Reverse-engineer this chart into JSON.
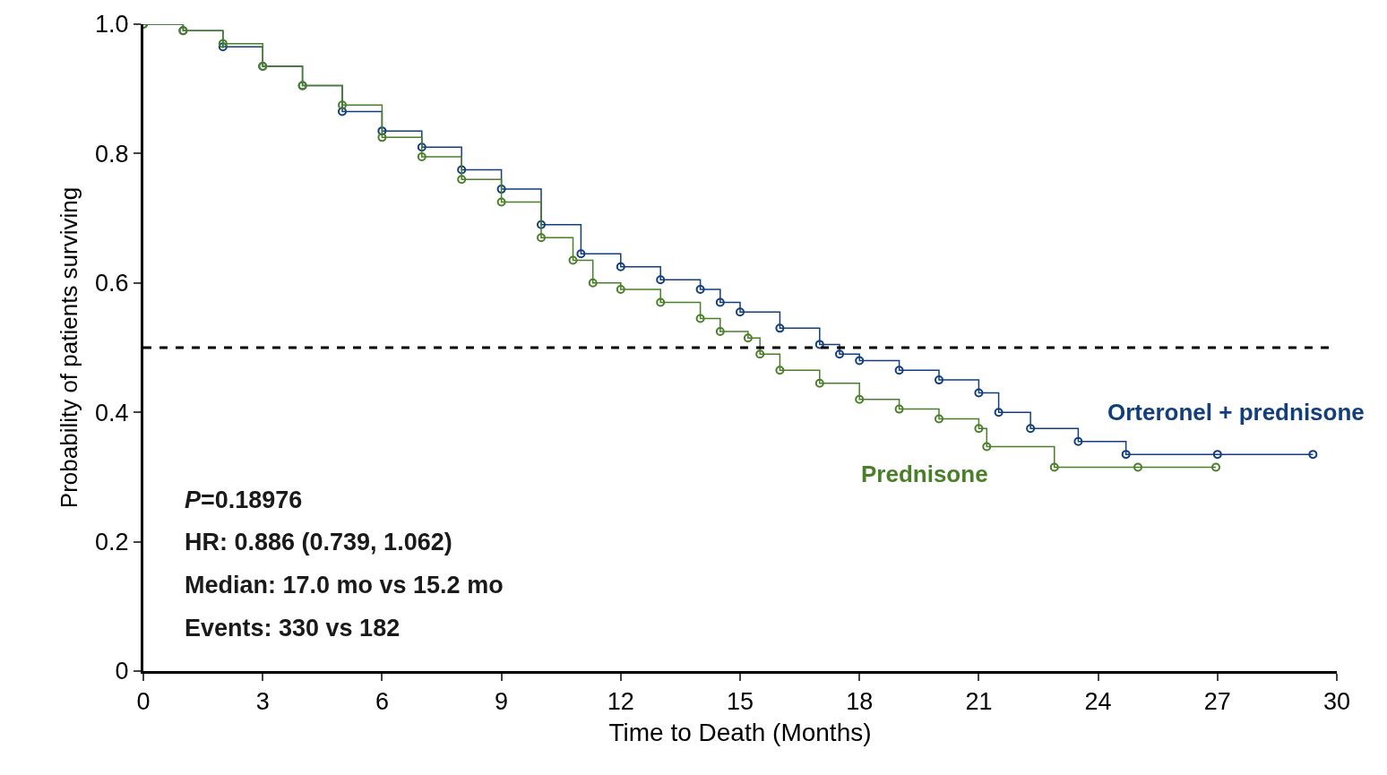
{
  "chart_data": {
    "type": "step",
    "xlabel": "Time to Death (Months)",
    "ylabel": "Probability of patients surviving",
    "series": [
      {
        "name": "Orteronel + prednisone",
        "color": "#123f7c",
        "x": [
          0,
          1,
          2,
          3,
          4,
          5,
          6,
          7,
          8,
          9,
          10,
          11,
          12,
          13,
          14,
          14.5,
          15,
          16,
          17,
          17.5,
          18,
          19,
          20,
          21,
          21.5,
          22.3,
          23.5,
          24.7,
          27,
          29.4
        ],
        "values": [
          1.0,
          0.99,
          0.965,
          0.935,
          0.905,
          0.865,
          0.835,
          0.81,
          0.775,
          0.745,
          0.69,
          0.645,
          0.625,
          0.605,
          0.59,
          0.57,
          0.555,
          0.53,
          0.505,
          0.49,
          0.48,
          0.465,
          0.45,
          0.43,
          0.4,
          0.375,
          0.355,
          0.335,
          0.335,
          0.335
        ]
      },
      {
        "name": "Prednisone",
        "color": "#4a7f2a",
        "x": [
          0,
          1,
          2,
          3,
          4,
          5,
          6,
          7,
          8,
          9,
          10,
          10.8,
          11.3,
          12,
          13,
          14,
          14.5,
          15.2,
          15.5,
          16,
          17,
          18,
          19,
          20,
          21,
          21.2,
          22.9,
          25,
          26.96
        ],
        "values": [
          1.0,
          0.99,
          0.97,
          0.935,
          0.905,
          0.875,
          0.825,
          0.795,
          0.76,
          0.725,
          0.67,
          0.635,
          0.6,
          0.59,
          0.57,
          0.545,
          0.525,
          0.515,
          0.49,
          0.465,
          0.445,
          0.42,
          0.405,
          0.39,
          0.375,
          0.347,
          0.315,
          0.315,
          0.315
        ]
      }
    ],
    "xlim": [
      0,
      30
    ],
    "xticks": [
      0,
      3,
      6,
      9,
      12,
      15,
      18,
      21,
      24,
      27,
      30
    ],
    "ylim": [
      0,
      1
    ],
    "yticks": [
      0,
      0.2,
      0.4,
      0.6,
      0.8,
      {
        "value": 1,
        "label": "1.0"
      }
    ],
    "ref_lines": [
      {
        "axis": "y",
        "value": 0.5,
        "color": "#000000",
        "line_style": "dashed"
      }
    ],
    "annotations": [
      "P=0.18976",
      "HR: 0.886 (0.739, 1.062)",
      "Median: 17.0 mo vs 15.2 mo",
      "Events: 330 vs 182"
    ],
    "marker": "circle",
    "line_style": "solid",
    "legend": false
  }
}
